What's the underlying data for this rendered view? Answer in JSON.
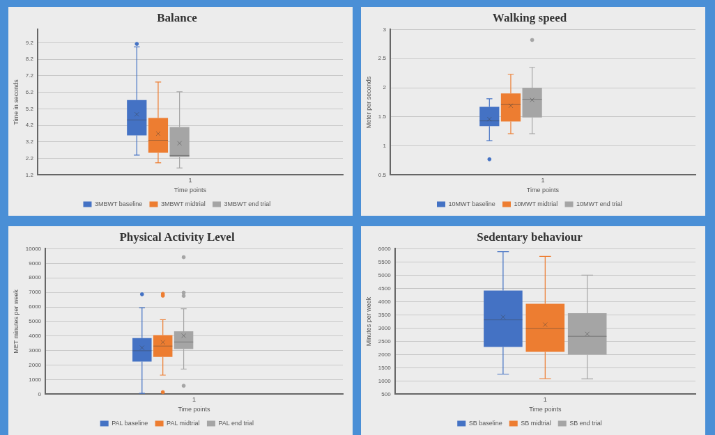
{
  "chart_data": [
    {
      "type": "box",
      "title": "Balance",
      "xlabel": "Time points",
      "ylabel": "Time in seconds",
      "categories": [
        "1"
      ],
      "ylim": [
        1.2,
        10
      ],
      "yticks": [
        1.2,
        2.2,
        3.2,
        4.2,
        5.2,
        6.2,
        7.2,
        8.2,
        9.2
      ],
      "grid": "y",
      "legend": "bottom",
      "series": [
        {
          "name": "3MBWT baseline",
          "color": "#4472c4",
          "boxes": [
            {
              "low": 2.4,
              "q1": 3.6,
              "median": 4.53,
              "q3": 5.73,
              "high": 8.95,
              "mean": 4.87,
              "outliers": [
                9.13
              ]
            }
          ]
        },
        {
          "name": "3MBWT midtrial",
          "color": "#ed7d31",
          "boxes": [
            {
              "low": 1.94,
              "q1": 2.54,
              "median": 3.3,
              "q3": 4.65,
              "high": 6.82,
              "mean": 3.7
            }
          ]
        },
        {
          "name": "3MBWT end trial",
          "color": "#a5a5a5",
          "boxes": [
            {
              "low": 1.62,
              "q1": 2.28,
              "median": 2.38,
              "q3": 4.1,
              "high": 6.23,
              "mean": 3.12
            }
          ]
        }
      ]
    },
    {
      "type": "box",
      "title": "Walking speed",
      "xlabel": "Time points",
      "ylabel": "Meter per seconds",
      "categories": [
        "1"
      ],
      "ylim": [
        0.5,
        3
      ],
      "yticks": [
        0.5,
        1,
        1.5,
        2,
        2.5,
        3
      ],
      "grid": "y",
      "legend": "bottom",
      "series": [
        {
          "name": "10MWT baseline",
          "color": "#4472c4",
          "boxes": [
            {
              "low": 1.09,
              "q1": 1.34,
              "median": 1.43,
              "q3": 1.67,
              "high": 1.81,
              "mean": 1.46,
              "outliers": [
                0.77
              ]
            }
          ]
        },
        {
          "name": "10MWT midtrial",
          "color": "#ed7d31",
          "boxes": [
            {
              "low": 1.21,
              "q1": 1.42,
              "median": 1.71,
              "q3": 1.9,
              "high": 2.23,
              "mean": 1.69
            }
          ]
        },
        {
          "name": "10MWT end trial",
          "color": "#a5a5a5",
          "boxes": [
            {
              "low": 1.21,
              "q1": 1.49,
              "median": 1.8,
              "q3": 2.0,
              "high": 2.35,
              "mean": 1.79,
              "outliers": [
                2.82
              ]
            }
          ]
        }
      ]
    },
    {
      "type": "box",
      "title": "Physical Activity Level",
      "xlabel": "Time points",
      "ylabel": "MET minutes per week",
      "categories": [
        "1"
      ],
      "ylim": [
        0,
        10000
      ],
      "yticks": [
        0,
        1000,
        2000,
        3000,
        4000,
        5000,
        6000,
        7000,
        8000,
        9000,
        10000
      ],
      "grid": "y",
      "legend": "bottom",
      "series": [
        {
          "name": "PAL baseline",
          "color": "#4472c4",
          "boxes": [
            {
              "low": 60,
              "q1": 2250,
              "median": 2990,
              "q3": 3860,
              "high": 5950,
              "mean": 3200,
              "outliers": [
                6870
              ]
            }
          ]
        },
        {
          "name": "PAL midtrial",
          "color": "#ed7d31",
          "boxes": [
            {
              "low": 1310,
              "q1": 2570,
              "median": 3310,
              "q3": 4060,
              "high": 5120,
              "mean": 3570,
              "outliers": [
                6900,
                6770,
                140
              ]
            }
          ]
        },
        {
          "name": "PAL end trial",
          "color": "#a5a5a5",
          "boxes": [
            {
              "low": 1730,
              "q1": 3100,
              "median": 3590,
              "q3": 4330,
              "high": 5870,
              "mean": 4020,
              "outliers": [
                9420,
                6980,
                6760,
                580
              ]
            }
          ]
        }
      ]
    },
    {
      "type": "box",
      "title": "Sedentary behaviour",
      "xlabel": "Time points",
      "ylabel": "Minutes per week",
      "categories": [
        "1"
      ],
      "ylim": [
        500,
        6000
      ],
      "yticks": [
        500,
        1000,
        1500,
        2000,
        2500,
        3000,
        3500,
        4000,
        4500,
        5000,
        5500,
        6000
      ],
      "grid": "y",
      "legend": "bottom",
      "series": [
        {
          "name": "SB baseline",
          "color": "#4472c4",
          "boxes": [
            {
              "low": 1260,
              "q1": 2290,
              "median": 3310,
              "q3": 4420,
              "high": 5890,
              "mean": 3420
            }
          ]
        },
        {
          "name": "SB midtrial",
          "color": "#ed7d31",
          "boxes": [
            {
              "low": 1090,
              "q1": 2100,
              "median": 2990,
              "q3": 3920,
              "high": 5710,
              "mean": 3130
            }
          ]
        },
        {
          "name": "SB end trial",
          "color": "#a5a5a5",
          "boxes": [
            {
              "low": 1080,
              "q1": 2000,
              "median": 2690,
              "q3": 3560,
              "high": 5000,
              "mean": 2780
            }
          ]
        }
      ]
    }
  ]
}
